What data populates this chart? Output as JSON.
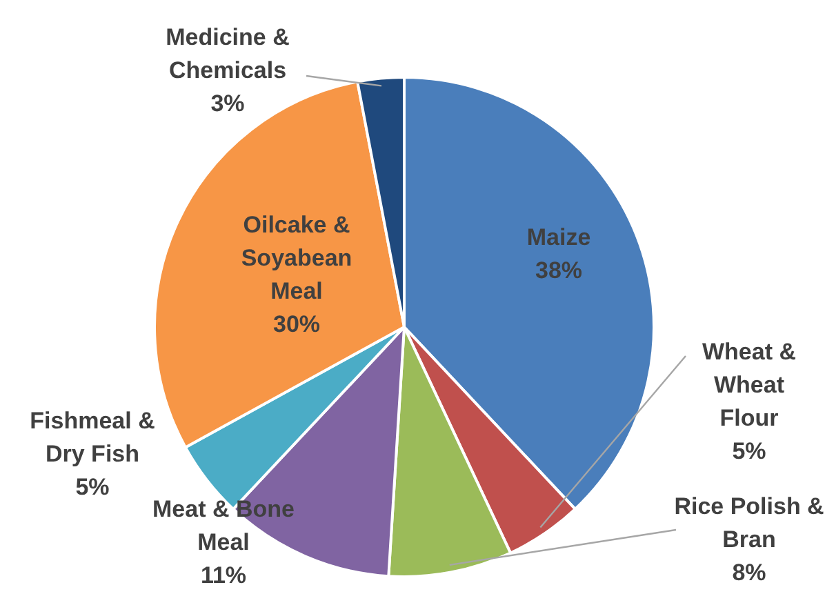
{
  "chart_data": {
    "type": "pie",
    "categories": [
      "Maize",
      "Wheat & Wheat Flour",
      "Rice Polish & Bran",
      "Meat & Bone Meal",
      "Fishmeal & Dry Fish",
      "Oilcake & Soyabean Meal",
      "Medicine & Chemicals"
    ],
    "values": [
      38,
      5,
      8,
      11,
      5,
      30,
      3
    ],
    "value_labels": [
      "38%",
      "5%",
      "8%",
      "11%",
      "5%",
      "30%",
      "3%"
    ],
    "colors": [
      "#4a7ebb",
      "#c0504d",
      "#9bbb59",
      "#8064a2",
      "#4bacc6",
      "#f79646",
      "#1f497d"
    ],
    "legend": false
  }
}
